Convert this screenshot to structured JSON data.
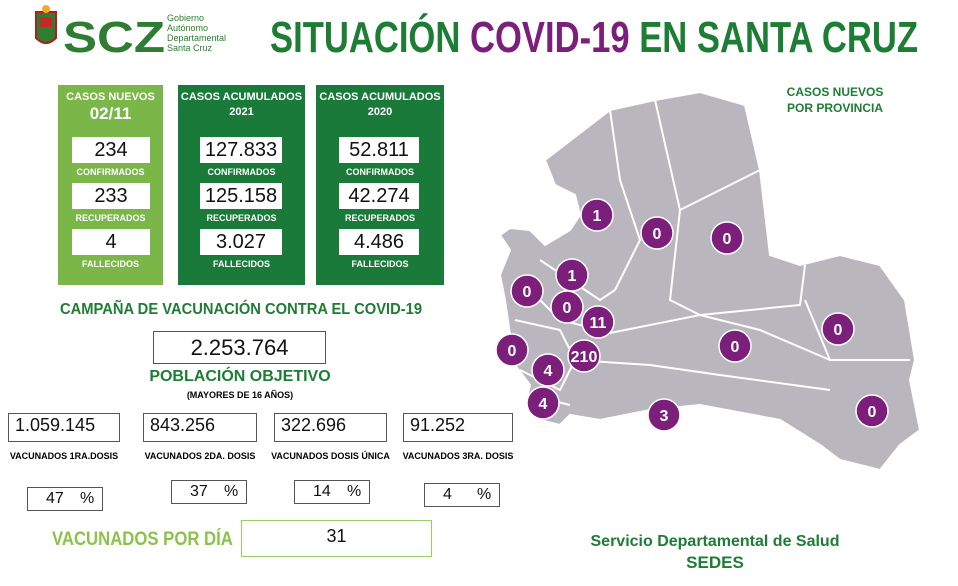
{
  "header": {
    "logo": "SCZ",
    "logo_lines": [
      "Gobierno",
      "Autónomo",
      "Departamental",
      "Santa Cruz"
    ],
    "title_parts": [
      "SITUACIÓN ",
      "COVID-19",
      " EN SANTA CRUZ"
    ]
  },
  "cases": [
    {
      "heading": [
        "CASOS NUEVOS",
        "02/11"
      ],
      "rows": [
        {
          "value": "234",
          "label": "CONFIRMADOS"
        },
        {
          "value": "233",
          "label": "RECUPERADOS"
        },
        {
          "value": "4",
          "label": "FALLECIDOS"
        }
      ]
    },
    {
      "heading": [
        "CASOS ACUMULADOS",
        "2021"
      ],
      "rows": [
        {
          "value": "127.833",
          "label": "CONFIRMADOS"
        },
        {
          "value": "125.158",
          "label": "RECUPERADOS"
        },
        {
          "value": "3.027",
          "label": "FALLECIDOS"
        }
      ]
    },
    {
      "heading": [
        "CASOS ACUMULADOS",
        "2020"
      ],
      "rows": [
        {
          "value": "52.811",
          "label": "CONFIRMADOS"
        },
        {
          "value": "42.274",
          "label": "RECUPERADOS"
        },
        {
          "value": "4.486",
          "label": "FALLECIDOS"
        }
      ]
    }
  ],
  "vaccination": {
    "title": "CAMPAÑA DE VACUNACIÓN CONTRA EL COVID-19",
    "target": "2.253.764",
    "target_label": "POBLACIÓN OBJETIVO",
    "target_note": "(MAYORES DE 16 AÑOS)",
    "doses": [
      {
        "value": "1.059.145",
        "label": "VACUNADOS 1RA.DOSIS",
        "percent": "47",
        "unit": "%"
      },
      {
        "value": "843.256",
        "label": "VACUNADOS 2DA. DOSIS",
        "percent": "37",
        "unit": "%"
      },
      {
        "value": "322.696",
        "label": "VACUNADOS DOSIS ÚNICA",
        "percent": "14",
        "unit": "%"
      },
      {
        "value": "91.252",
        "label": "VACUNADOS 3RA. DOSIS",
        "percent": "4",
        "unit": "%"
      }
    ],
    "per_day_label": "VACUNADOS POR DÍA",
    "per_day": "31"
  },
  "map": {
    "title": [
      "CASOS NUEVOS",
      "POR PROVINCIA"
    ],
    "counts": [
      "1",
      "0",
      "0",
      "1",
      "0",
      "0",
      "11",
      "0",
      "210",
      "4",
      "4",
      "0",
      "0",
      "3",
      "0"
    ]
  },
  "footer": {
    "line1": "Servicio Departamental de Salud",
    "line2": "SEDES"
  }
}
